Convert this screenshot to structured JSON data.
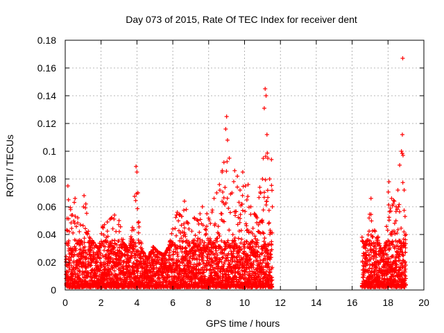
{
  "chart_data": {
    "type": "scatter",
    "title": "Day 073 of 2015, Rate Of TEC Index for receiver dent",
    "xlabel": "GPS time / hours",
    "ylabel": "ROTI / TECUs",
    "xlim": [
      0,
      20
    ],
    "ylim": [
      0,
      0.18
    ],
    "xticks": [
      0,
      2,
      4,
      6,
      8,
      10,
      12,
      14,
      16,
      18,
      20
    ],
    "xtick_labels": [
      "0",
      "2",
      "4",
      "6",
      "8",
      "10",
      "12",
      "14",
      "16",
      "18",
      "20"
    ],
    "yticks": [
      0,
      0.02,
      0.04,
      0.06,
      0.08,
      0.1,
      0.12,
      0.14,
      0.16,
      0.18
    ],
    "ytick_labels": [
      "0",
      "0.02",
      "0.04",
      "0.06",
      "0.08",
      "0.1",
      "0.12",
      "0.14",
      "0.16",
      "0.18"
    ],
    "grid": true,
    "marker": "+",
    "color": "#ff0000",
    "series": [
      {
        "name": "ROTI",
        "points": [
          [
            0.05,
            0.022
          ],
          [
            0.15,
            0.075
          ],
          [
            0.3,
            0.058
          ],
          [
            0.55,
            0.066
          ],
          [
            0.7,
            0.052
          ],
          [
            0.85,
            0.047
          ],
          [
            1.05,
            0.068
          ],
          [
            1.15,
            0.062
          ],
          [
            1.35,
            0.038
          ],
          [
            1.6,
            0.034
          ],
          [
            1.85,
            0.03
          ],
          [
            2.1,
            0.046
          ],
          [
            2.35,
            0.049
          ],
          [
            2.5,
            0.051
          ],
          [
            2.75,
            0.054
          ],
          [
            3.0,
            0.05
          ],
          [
            3.3,
            0.033
          ],
          [
            3.55,
            0.028
          ],
          [
            3.75,
            0.045
          ],
          [
            3.95,
            0.089
          ],
          [
            4.0,
            0.085
          ],
          [
            4.05,
            0.07
          ],
          [
            4.1,
            0.049
          ],
          [
            4.3,
            0.028
          ],
          [
            4.6,
            0.022
          ],
          [
            4.9,
            0.031
          ],
          [
            5.2,
            0.027
          ],
          [
            5.5,
            0.025
          ],
          [
            5.75,
            0.03
          ],
          [
            6.0,
            0.044
          ],
          [
            6.25,
            0.056
          ],
          [
            6.5,
            0.053
          ],
          [
            6.65,
            0.064
          ],
          [
            6.75,
            0.058
          ],
          [
            6.9,
            0.044
          ],
          [
            7.2,
            0.052
          ],
          [
            7.4,
            0.05
          ],
          [
            7.65,
            0.06
          ],
          [
            7.9,
            0.055
          ],
          [
            8.1,
            0.048
          ],
          [
            8.3,
            0.066
          ],
          [
            8.45,
            0.07
          ],
          [
            8.6,
            0.076
          ],
          [
            8.75,
            0.085
          ],
          [
            8.85,
            0.092
          ],
          [
            8.95,
            0.116
          ],
          [
            9.0,
            0.125
          ],
          [
            9.05,
            0.108
          ],
          [
            9.15,
            0.095
          ],
          [
            9.3,
            0.07
          ],
          [
            9.45,
            0.086
          ],
          [
            9.6,
            0.082
          ],
          [
            9.75,
            0.072
          ],
          [
            9.9,
            0.085
          ],
          [
            10.05,
            0.075
          ],
          [
            10.2,
            0.076
          ],
          [
            10.35,
            0.06
          ],
          [
            10.55,
            0.055
          ],
          [
            10.7,
            0.052
          ],
          [
            10.85,
            0.074
          ],
          [
            11.0,
            0.08
          ],
          [
            11.1,
            0.131
          ],
          [
            11.15,
            0.145
          ],
          [
            11.2,
            0.14
          ],
          [
            11.25,
            0.112
          ],
          [
            11.3,
            0.095
          ],
          [
            11.4,
            0.08
          ],
          [
            11.5,
            0.094
          ],
          [
            11.55,
            0.06
          ],
          [
            16.55,
            0.038
          ],
          [
            16.7,
            0.032
          ],
          [
            16.85,
            0.036
          ],
          [
            17.05,
            0.066
          ],
          [
            17.25,
            0.043
          ],
          [
            17.45,
            0.038
          ],
          [
            17.65,
            0.027
          ],
          [
            17.85,
            0.032
          ],
          [
            18.05,
            0.078
          ],
          [
            18.2,
            0.066
          ],
          [
            18.35,
            0.064
          ],
          [
            18.45,
            0.06
          ],
          [
            18.55,
            0.072
          ],
          [
            18.65,
            0.09
          ],
          [
            18.75,
            0.1
          ],
          [
            18.8,
            0.112
          ],
          [
            18.82,
            0.167
          ],
          [
            18.9,
            0.072
          ],
          [
            18.95,
            0.053
          ],
          [
            19.0,
            0.04
          ]
        ]
      }
    ]
  }
}
